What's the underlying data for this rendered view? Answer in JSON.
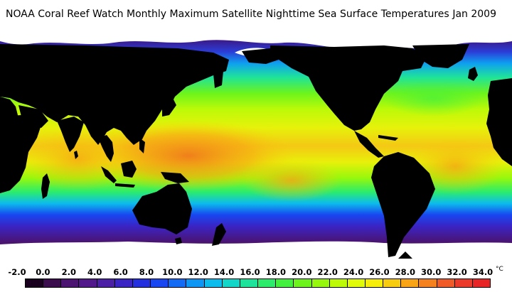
{
  "title": "NOAA Coral Reef Watch Monthly Maximum Satellite Nighttime Sea Surface Temperatures",
  "date": "Jan 2009",
  "legend": {
    "labels": [
      "-2.0",
      "0.0",
      "2.0",
      "4.0",
      "6.0",
      "8.0",
      "10.0",
      "12.0",
      "14.0",
      "16.0",
      "18.0",
      "20.0",
      "22.0",
      "24.0",
      "26.0",
      "28.0",
      "30.0",
      "32.0",
      "34.0"
    ],
    "unit": "°C",
    "colors": [
      "#1a001f",
      "#3b0d4f",
      "#4a1470",
      "#50188a",
      "#4b1fa6",
      "#3b24c4",
      "#2430e0",
      "#1846f0",
      "#126af5",
      "#0e96f5",
      "#0cbcec",
      "#12d6c8",
      "#1ee39a",
      "#2cec6c",
      "#44f03e",
      "#6cf41c",
      "#96f80c",
      "#bcfa08",
      "#e0fa08",
      "#f6ee0a",
      "#f8cc0e",
      "#f8a414",
      "#f4801e",
      "#f05a26",
      "#ec3a2a",
      "#e82424"
    ]
  },
  "map": {
    "land_color": "#000000",
    "ice_color": "#ffffff"
  }
}
